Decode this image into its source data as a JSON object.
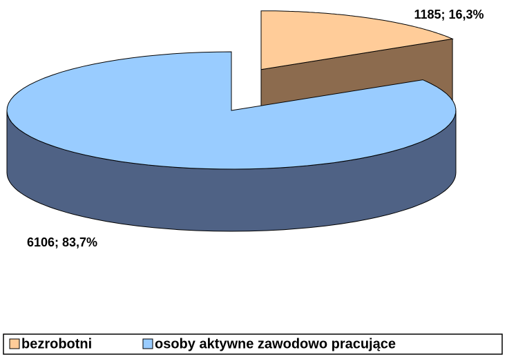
{
  "chart_data": {
    "type": "pie",
    "categories": [
      "bezrobotni",
      "osoby aktywne zawodowo pracujące"
    ],
    "values": [
      1185,
      6106
    ],
    "value_labels": [
      "1185; 16,3%",
      "6106; 83,7%"
    ],
    "colors": [
      "#ffcc99",
      "#99ccff"
    ],
    "side_colors": [
      "#8c6b4e",
      "#4f6285"
    ],
    "legend": "bottom"
  }
}
